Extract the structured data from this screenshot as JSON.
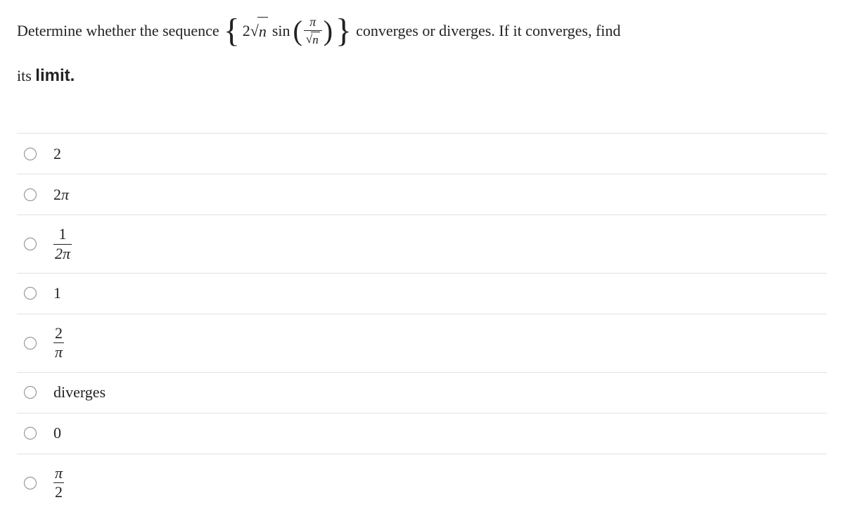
{
  "question": {
    "text_before": "Determine whether the sequence",
    "formula": {
      "coefficient": "2",
      "sqrt_arg": "n",
      "func": "sin",
      "paren_content": {
        "numerator": "π",
        "denominator_sqrt": "n"
      }
    },
    "text_after": "converges or diverges.  If it converges, find",
    "line2_prefix": "its",
    "line2_bold": "limit."
  },
  "options": [
    {
      "type": "plain",
      "value": "2"
    },
    {
      "type": "plain",
      "value": "2π",
      "italic_pi": true
    },
    {
      "type": "fraction",
      "num": "1",
      "den": "2π",
      "italic_den": true
    },
    {
      "type": "plain",
      "value": "1"
    },
    {
      "type": "fraction",
      "num": "2",
      "den": "π",
      "italic_den": true
    },
    {
      "type": "plain",
      "value": "diverges"
    },
    {
      "type": "plain",
      "value": "0"
    },
    {
      "type": "fraction",
      "num": "π",
      "den": "2",
      "italic_num": true
    }
  ],
  "styling": {
    "body_font": "Georgia, Times New Roman, serif",
    "body_fontsize": 22,
    "bold_font": "Arial, Helvetica, sans-serif",
    "text_color": "#222222",
    "radio_border_color": "#888888",
    "divider_color": "#e2e2e2",
    "background": "#ffffff"
  }
}
